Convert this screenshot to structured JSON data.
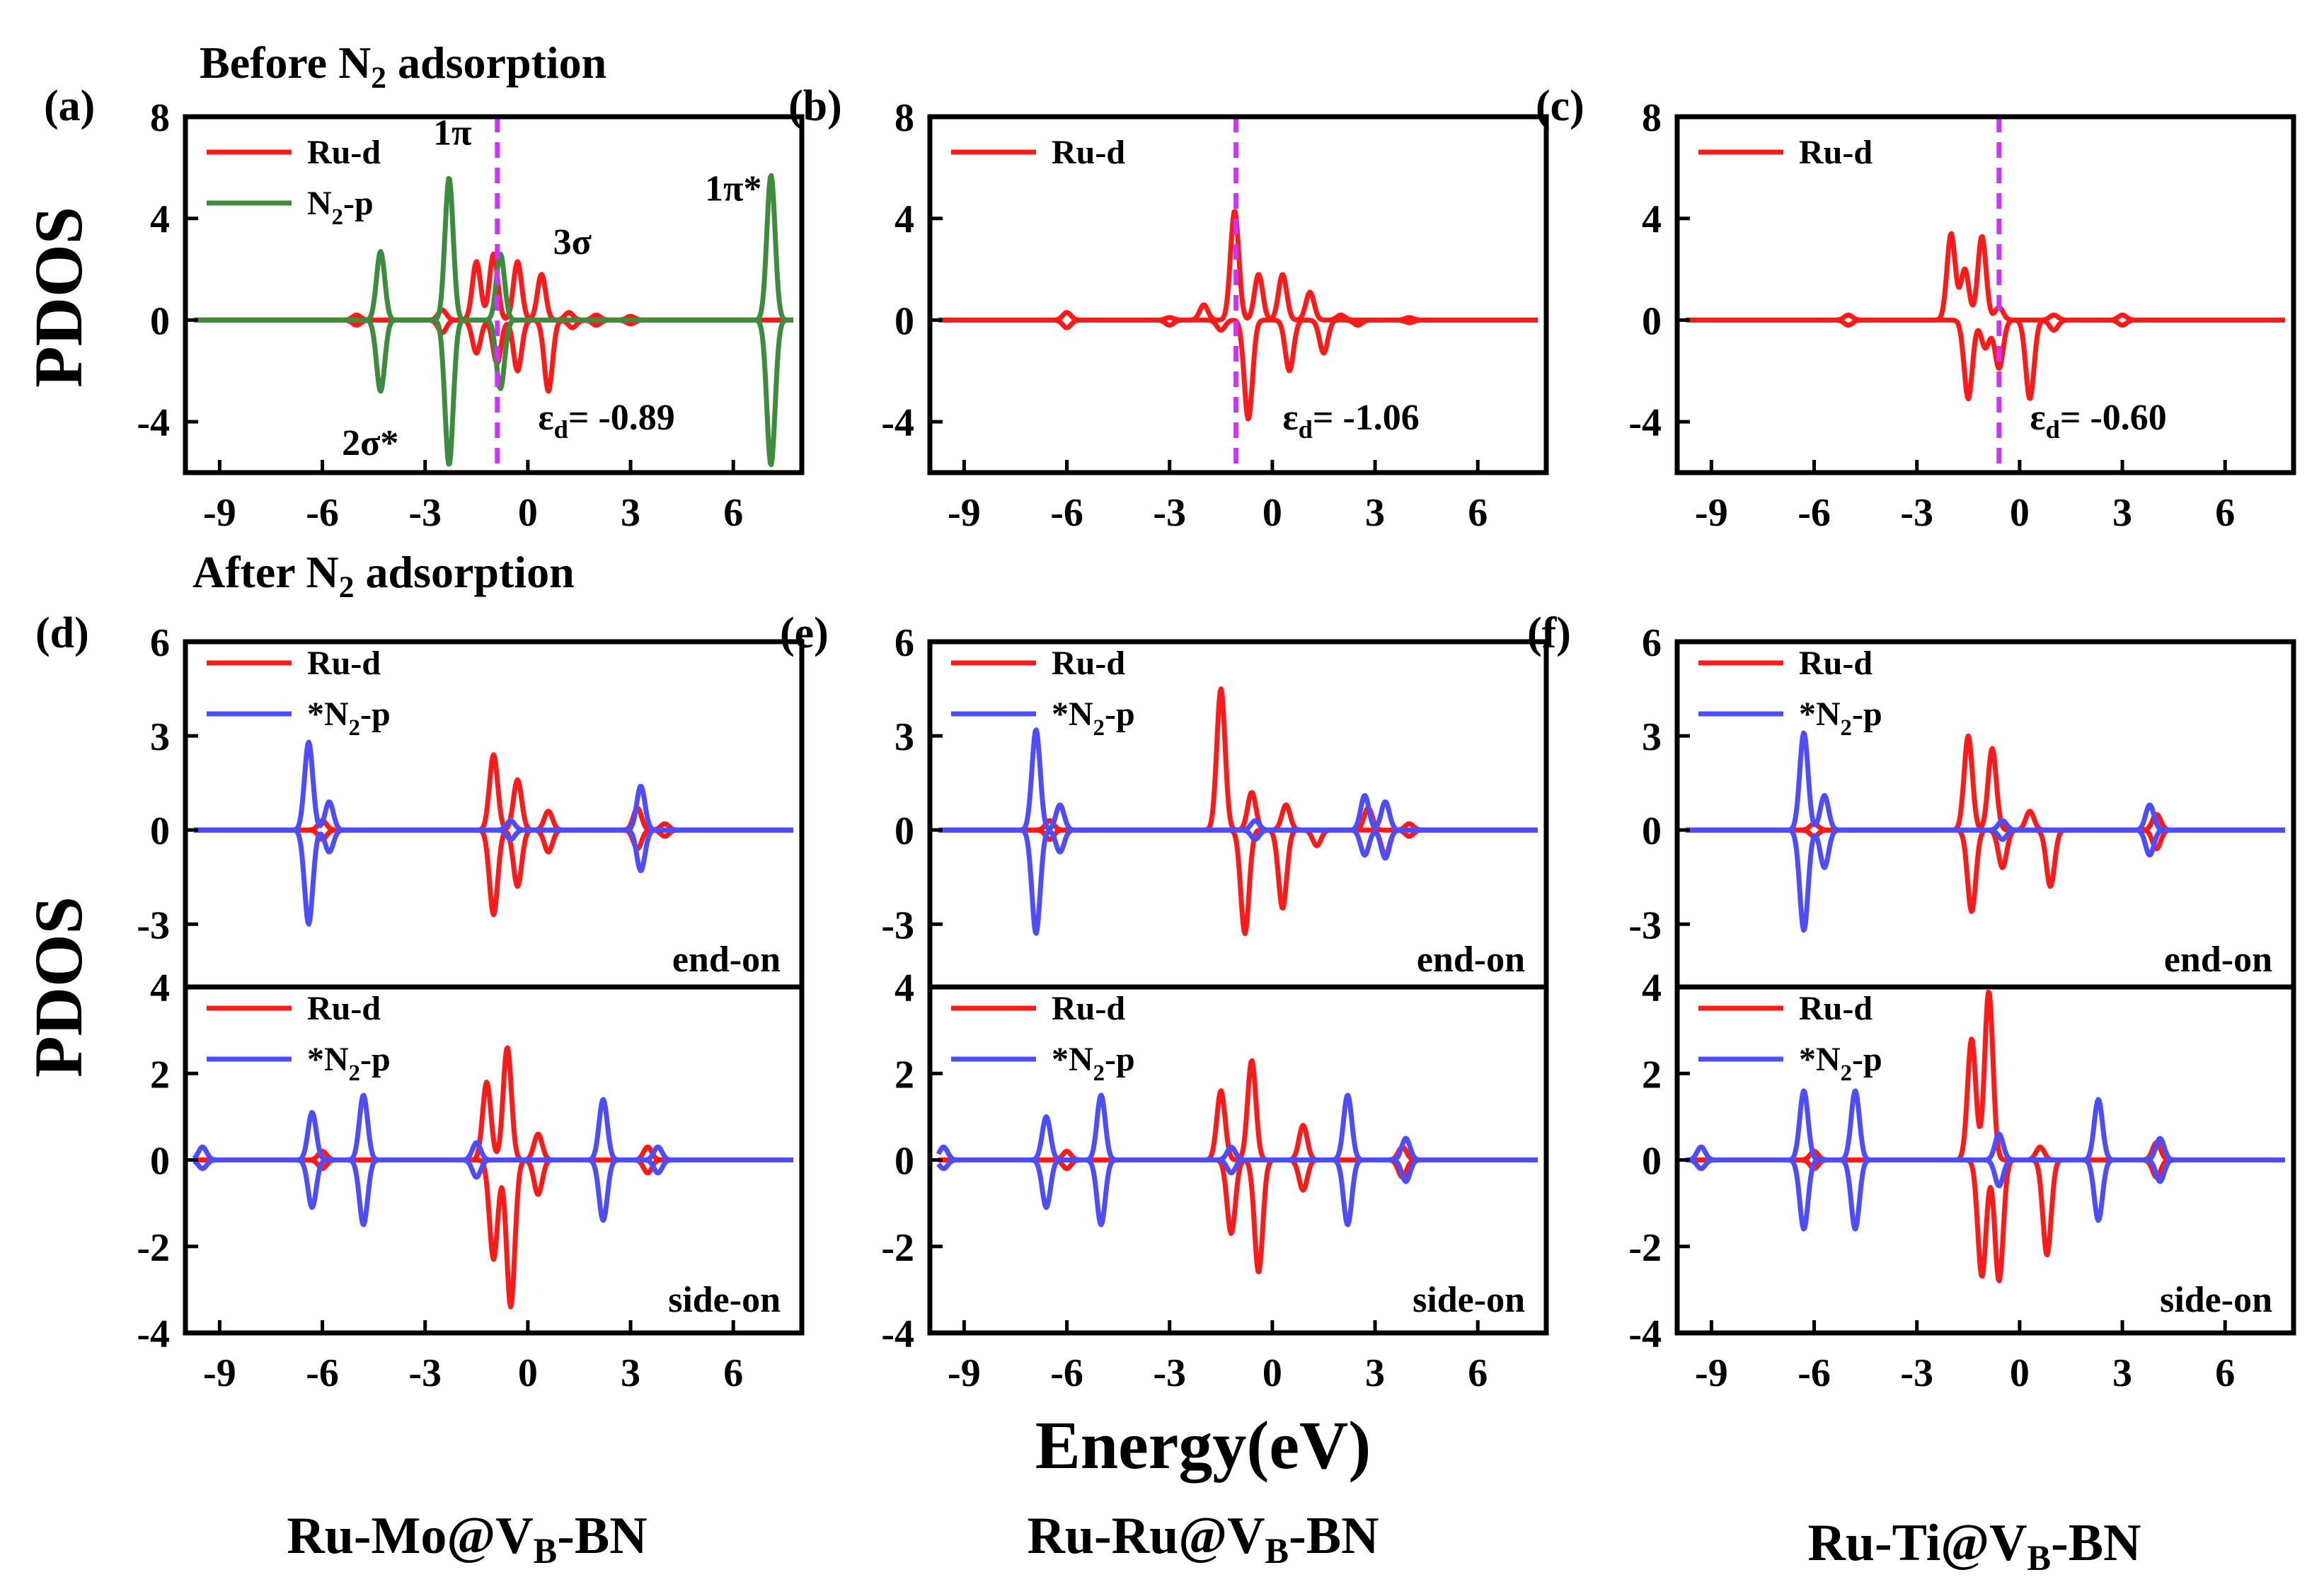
{
  "figure": {
    "before_label": "Before N₂ adsorption",
    "after_label": "After N₂ adsorption",
    "ylabel": "PDOS",
    "xlabel": "Energy(eV)",
    "systems": [
      "Ru-Mo@V_B-BN",
      "Ru-Ru@V_B-BN",
      "Ru-Ti@V_B-BN"
    ]
  },
  "colors": {
    "ru_d": "#ff1a1a",
    "n2_gas": "#3d8b3d",
    "n2_ads": "#4d4dff",
    "fermi_d_center": "#cc33ff"
  },
  "chart_data": [
    {
      "panel": "(a)",
      "type": "line",
      "xlim": [
        -10,
        8
      ],
      "ylim": [
        -6,
        8
      ],
      "xticks": [
        -9,
        -6,
        -3,
        0,
        3,
        6
      ],
      "yticks": [
        -4,
        0,
        4,
        8
      ],
      "legend": [
        "Ru-d",
        "N₂-p"
      ],
      "d_band_center": -0.89,
      "d_band_label": "εd= -0.89",
      "annotations": [
        "1π",
        "3σ",
        "1π*",
        "2σ*"
      ],
      "series": [
        {
          "name": "Ru-d",
          "color": "ru_d",
          "up": [
            [
              -5,
              0.2
            ],
            [
              -2.5,
              0.4
            ],
            [
              -1.5,
              2.3
            ],
            [
              -1,
              2.6
            ],
            [
              -0.3,
              2.3
            ],
            [
              0.4,
              1.8
            ],
            [
              1.2,
              0.3
            ],
            [
              2,
              0.2
            ],
            [
              3,
              0.15
            ]
          ],
          "down": [
            [
              -5,
              -0.2
            ],
            [
              -2.5,
              -0.5
            ],
            [
              -1.5,
              -1.3
            ],
            [
              -0.9,
              -1.7
            ],
            [
              -0.3,
              -2.0
            ],
            [
              0.6,
              -2.8
            ],
            [
              1.3,
              -0.3
            ],
            [
              2,
              -0.2
            ],
            [
              3,
              -0.15
            ]
          ]
        },
        {
          "name": "N₂-p",
          "color": "n2_gas",
          "up": [
            [
              -4.3,
              2.7
            ],
            [
              -2.3,
              5.6
            ],
            [
              -0.8,
              2.6
            ],
            [
              7.1,
              5.7
            ]
          ],
          "down": [
            [
              -4.3,
              -2.8
            ],
            [
              -2.3,
              -5.7
            ],
            [
              -0.8,
              -2.7
            ],
            [
              7.1,
              -5.7
            ]
          ]
        }
      ]
    },
    {
      "panel": "(b)",
      "type": "line",
      "xlim": [
        -10,
        8
      ],
      "ylim": [
        -6,
        8
      ],
      "xticks": [
        -9,
        -6,
        -3,
        0,
        3,
        6
      ],
      "yticks": [
        -4,
        0,
        4,
        8
      ],
      "legend": [
        "Ru-d"
      ],
      "d_band_center": -1.06,
      "d_band_label": "εd= -1.06",
      "series": [
        {
          "name": "Ru-d",
          "color": "ru_d",
          "up": [
            [
              -6,
              0.3
            ],
            [
              -3,
              0.1
            ],
            [
              -2,
              0.6
            ],
            [
              -1.1,
              4.3
            ],
            [
              -0.4,
              1.8
            ],
            [
              0.3,
              1.8
            ],
            [
              1.1,
              1.1
            ],
            [
              2,
              0.2
            ],
            [
              4,
              0.1
            ]
          ],
          "down": [
            [
              -6,
              -0.3
            ],
            [
              -3,
              -0.2
            ],
            [
              -1.5,
              -0.4
            ],
            [
              -0.7,
              -3.9
            ],
            [
              0.5,
              -2.0
            ],
            [
              1.5,
              -1.3
            ],
            [
              2.5,
              -0.2
            ],
            [
              4,
              -0.1
            ]
          ]
        }
      ]
    },
    {
      "panel": "(c)",
      "type": "line",
      "xlim": [
        -10,
        8
      ],
      "ylim": [
        -6,
        8
      ],
      "xticks": [
        -9,
        -6,
        -3,
        0,
        3,
        6
      ],
      "yticks": [
        -4,
        0,
        4,
        8
      ],
      "legend": [
        "Ru-d"
      ],
      "d_band_center": -0.6,
      "d_band_label": "εd= -0.60",
      "series": [
        {
          "name": "Ru-d",
          "color": "ru_d",
          "up": [
            [
              -5,
              0.2
            ],
            [
              -2,
              3.4
            ],
            [
              -1.6,
              2.0
            ],
            [
              -1.1,
              3.3
            ],
            [
              -0.6,
              0.5
            ],
            [
              1,
              0.2
            ],
            [
              3,
              0.2
            ]
          ],
          "down": [
            [
              -5,
              -0.2
            ],
            [
              -1.5,
              -3.1
            ],
            [
              -1.0,
              -1.1
            ],
            [
              -0.6,
              -1.9
            ],
            [
              0.3,
              -3.1
            ],
            [
              1,
              -0.4
            ],
            [
              3,
              -0.2
            ]
          ]
        }
      ]
    },
    {
      "panel": "(d)",
      "subtitle": "end-on",
      "type": "line",
      "xlim": [
        -10,
        8
      ],
      "ylim": [
        -5,
        6
      ],
      "yticks": [
        -3,
        0,
        3,
        6
      ],
      "legend": [
        "Ru-d",
        "*N₂-p"
      ],
      "series": [
        {
          "name": "Ru-d",
          "color": "ru_d",
          "up": [
            [
              -6,
              0.3
            ],
            [
              -1.0,
              2.4
            ],
            [
              -0.3,
              1.6
            ],
            [
              0.6,
              0.6
            ],
            [
              3.2,
              0.7
            ],
            [
              4,
              0.2
            ]
          ],
          "down": [
            [
              -6,
              -0.3
            ],
            [
              -1.0,
              -2.7
            ],
            [
              -0.3,
              -1.8
            ],
            [
              0.6,
              -0.7
            ],
            [
              3.2,
              -0.6
            ],
            [
              4,
              -0.2
            ]
          ]
        },
        {
          "name": "*N₂-p",
          "color": "n2_ads",
          "up": [
            [
              -6.4,
              2.8
            ],
            [
              -5.8,
              0.9
            ],
            [
              -0.5,
              0.3
            ],
            [
              3.3,
              1.4
            ]
          ],
          "down": [
            [
              -6.4,
              -3.0
            ],
            [
              -5.8,
              -0.7
            ],
            [
              -0.5,
              -0.3
            ],
            [
              3.3,
              -1.3
            ]
          ]
        }
      ]
    },
    {
      "panel": "(d)",
      "subtitle": "side-on",
      "type": "line",
      "xlim": [
        -10,
        8
      ],
      "ylim": [
        -4,
        4
      ],
      "xticks": [
        -9,
        -6,
        -3,
        0,
        3,
        6
      ],
      "yticks": [
        -4,
        -2,
        0,
        2,
        4
      ],
      "legend": [
        "Ru-d",
        "*N₂-p"
      ],
      "series": [
        {
          "name": "Ru-d",
          "color": "ru_d",
          "up": [
            [
              -6,
              0.2
            ],
            [
              -1.2,
              1.8
            ],
            [
              -0.6,
              2.6
            ],
            [
              0.3,
              0.6
            ],
            [
              3.5,
              0.3
            ]
          ],
          "down": [
            [
              -6,
              -0.2
            ],
            [
              -1.0,
              -2.3
            ],
            [
              -0.5,
              -3.4
            ],
            [
              0.3,
              -0.8
            ],
            [
              3.5,
              -0.3
            ]
          ]
        },
        {
          "name": "*N₂-p",
          "color": "n2_ads",
          "up": [
            [
              -9.5,
              0.3
            ],
            [
              -6.3,
              1.1
            ],
            [
              -4.8,
              1.5
            ],
            [
              -1.5,
              0.4
            ],
            [
              2.2,
              1.4
            ],
            [
              3.8,
              0.3
            ]
          ],
          "down": [
            [
              -9.5,
              -0.2
            ],
            [
              -6.3,
              -1.1
            ],
            [
              -4.8,
              -1.5
            ],
            [
              -1.5,
              -0.4
            ],
            [
              2.2,
              -1.4
            ],
            [
              3.8,
              -0.3
            ]
          ]
        }
      ]
    },
    {
      "panel": "(e)",
      "subtitle": "end-on",
      "type": "line",
      "xlim": [
        -10,
        8
      ],
      "ylim": [
        -5,
        6
      ],
      "yticks": [
        -3,
        0,
        3,
        6
      ],
      "legend": [
        "Ru-d",
        "*N₂-p"
      ],
      "series": [
        {
          "name": "Ru-d",
          "color": "ru_d",
          "up": [
            [
              -6.5,
              0.3
            ],
            [
              -1.5,
              4.5
            ],
            [
              -0.6,
              1.2
            ],
            [
              0.4,
              0.8
            ],
            [
              2.8,
              0.7
            ],
            [
              4,
              0.2
            ]
          ],
          "down": [
            [
              -6.5,
              -0.3
            ],
            [
              -0.8,
              -3.3
            ],
            [
              0.3,
              -2.5
            ],
            [
              1.3,
              -0.5
            ],
            [
              3.3,
              -0.8
            ],
            [
              4,
              -0.2
            ]
          ]
        },
        {
          "name": "*N₂-p",
          "color": "n2_ads",
          "up": [
            [
              -6.9,
              3.2
            ],
            [
              -6.2,
              0.8
            ],
            [
              -0.5,
              0.3
            ],
            [
              2.7,
              1.1
            ],
            [
              3.3,
              0.9
            ]
          ],
          "down": [
            [
              -6.9,
              -3.3
            ],
            [
              -6.2,
              -0.7
            ],
            [
              -0.5,
              -0.3
            ],
            [
              2.7,
              -0.8
            ],
            [
              3.3,
              -0.9
            ]
          ]
        }
      ]
    },
    {
      "panel": "(e)",
      "subtitle": "side-on",
      "type": "line",
      "xlim": [
        -10,
        8
      ],
      "ylim": [
        -4,
        4
      ],
      "xticks": [
        -9,
        -6,
        -3,
        0,
        3,
        6
      ],
      "yticks": [
        -4,
        -2,
        0,
        2,
        4
      ],
      "legend": [
        "Ru-d",
        "*N₂-p"
      ],
      "series": [
        {
          "name": "Ru-d",
          "color": "ru_d",
          "up": [
            [
              -6,
              0.2
            ],
            [
              -1.5,
              1.6
            ],
            [
              -0.6,
              2.3
            ],
            [
              0.9,
              0.8
            ],
            [
              3.8,
              0.3
            ]
          ],
          "down": [
            [
              -6,
              -0.2
            ],
            [
              -1.2,
              -1.7
            ],
            [
              -0.4,
              -2.6
            ],
            [
              0.9,
              -0.7
            ],
            [
              3.8,
              -0.4
            ]
          ]
        },
        {
          "name": "*N₂-p",
          "color": "n2_ads",
          "up": [
            [
              -9.6,
              0.3
            ],
            [
              -6.6,
              1.0
            ],
            [
              -5.0,
              1.5
            ],
            [
              -1.2,
              0.3
            ],
            [
              2.2,
              1.5
            ],
            [
              3.9,
              0.5
            ]
          ],
          "down": [
            [
              -9.6,
              -0.2
            ],
            [
              -6.6,
              -1.1
            ],
            [
              -5.0,
              -1.5
            ],
            [
              -1.2,
              -0.3
            ],
            [
              2.2,
              -1.5
            ],
            [
              3.9,
              -0.5
            ]
          ]
        }
      ]
    },
    {
      "panel": "(f)",
      "subtitle": "end-on",
      "type": "line",
      "xlim": [
        -10,
        8
      ],
      "ylim": [
        -5,
        6
      ],
      "yticks": [
        -3,
        0,
        3,
        6
      ],
      "legend": [
        "Ru-d",
        "*N₂-p"
      ],
      "series": [
        {
          "name": "Ru-d",
          "color": "ru_d",
          "up": [
            [
              -6,
              0.2
            ],
            [
              -1.5,
              3.0
            ],
            [
              -0.8,
              2.6
            ],
            [
              0.3,
              0.6
            ],
            [
              4,
              0.5
            ]
          ],
          "down": [
            [
              -6,
              -0.2
            ],
            [
              -1.4,
              -2.6
            ],
            [
              -0.5,
              -1.2
            ],
            [
              0.9,
              -1.8
            ],
            [
              4,
              -0.6
            ]
          ]
        },
        {
          "name": "*N₂-p",
          "color": "n2_ads",
          "up": [
            [
              -6.3,
              3.1
            ],
            [
              -5.7,
              1.1
            ],
            [
              -0.5,
              0.3
            ],
            [
              3.8,
              0.8
            ]
          ],
          "down": [
            [
              -6.3,
              -3.2
            ],
            [
              -5.7,
              -1.2
            ],
            [
              -0.5,
              -0.3
            ],
            [
              3.8,
              -0.8
            ]
          ]
        }
      ]
    },
    {
      "panel": "(f)",
      "subtitle": "side-on",
      "type": "line",
      "xlim": [
        -10,
        8
      ],
      "ylim": [
        -4,
        4
      ],
      "xticks": [
        -9,
        -6,
        -3,
        0,
        3,
        6
      ],
      "yticks": [
        -4,
        -2,
        0,
        2,
        4
      ],
      "legend": [
        "Ru-d",
        "*N₂-p"
      ],
      "series": [
        {
          "name": "Ru-d",
          "color": "ru_d",
          "up": [
            [
              -6,
              0.2
            ],
            [
              -1.4,
              2.8
            ],
            [
              -0.9,
              3.9
            ],
            [
              0.6,
              0.3
            ],
            [
              4,
              0.4
            ]
          ],
          "down": [
            [
              -6,
              -0.2
            ],
            [
              -1.1,
              -2.7
            ],
            [
              -0.6,
              -2.8
            ],
            [
              0.8,
              -2.2
            ],
            [
              4,
              -0.4
            ]
          ]
        },
        {
          "name": "*N₂-p",
          "color": "n2_ads",
          "up": [
            [
              -9.3,
              0.3
            ],
            [
              -6.3,
              1.6
            ],
            [
              -4.8,
              1.6
            ],
            [
              -0.6,
              0.6
            ],
            [
              2.3,
              1.4
            ],
            [
              4.1,
              0.5
            ]
          ],
          "down": [
            [
              -9.3,
              -0.2
            ],
            [
              -6.3,
              -1.6
            ],
            [
              -4.8,
              -1.6
            ],
            [
              -0.6,
              -0.6
            ],
            [
              2.3,
              -1.4
            ],
            [
              4.1,
              -0.5
            ]
          ]
        }
      ]
    }
  ]
}
